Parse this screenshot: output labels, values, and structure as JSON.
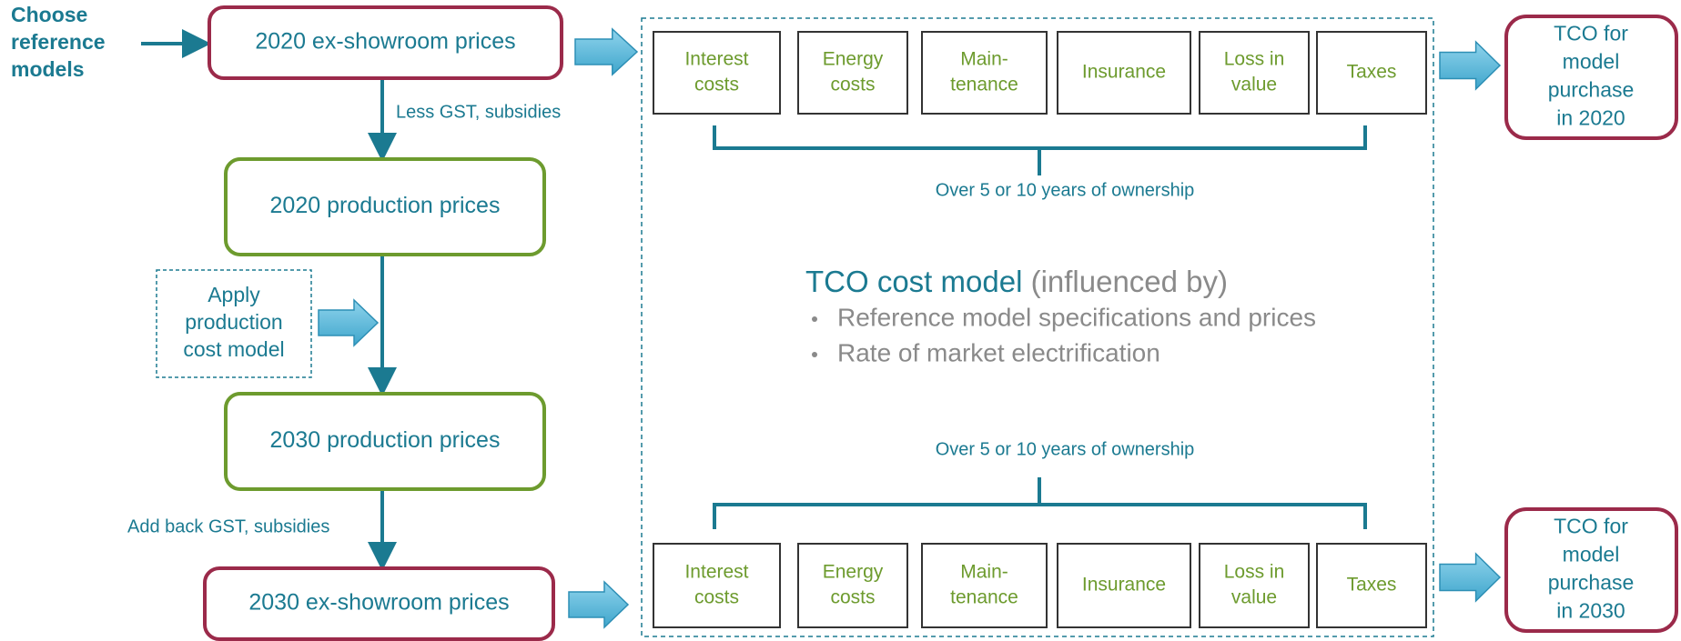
{
  "start_label": [
    "Choose",
    "reference",
    "models"
  ],
  "nodes": [
    {
      "lines": [
        "2020 ex-showroom prices"
      ]
    },
    {
      "lines": [
        "2020 production prices"
      ]
    },
    {
      "lines": [
        "Apply",
        "production",
        "cost model"
      ]
    },
    {
      "lines": [
        "2030 production prices"
      ]
    },
    {
      "lines": [
        "2030 ex-showroom prices"
      ]
    }
  ],
  "edge_labels": [
    "Less GST, subsidies",
    "Add back GST, subsidies"
  ],
  "cost_rows": [
    {
      "items": [
        [
          "Interest",
          "costs"
        ],
        [
          "Energy",
          "costs"
        ],
        [
          "Main-",
          "tenance"
        ],
        [
          "Insurance"
        ],
        [
          "Loss in",
          "value"
        ],
        [
          "Taxes"
        ]
      ],
      "span": "Over 5 or 10 years of ownership"
    },
    {
      "items": [
        [
          "Interest",
          "costs"
        ],
        [
          "Energy",
          "costs"
        ],
        [
          "Main-",
          "tenance"
        ],
        [
          "Insurance"
        ],
        [
          "Loss in",
          "value"
        ],
        [
          "Taxes"
        ]
      ],
      "span": "Over 5 or 10 years of ownership"
    }
  ],
  "cost_model": {
    "title": "TCO cost model",
    "qualifier": " (influenced by)",
    "bullets": [
      "Reference model specifications and prices",
      "Rate of market electrification"
    ]
  },
  "outputs": [
    [
      "TCO for",
      "model",
      "purchase",
      "in 2020"
    ],
    [
      "TCO for",
      "model",
      "purchase",
      "in 2030"
    ]
  ]
}
